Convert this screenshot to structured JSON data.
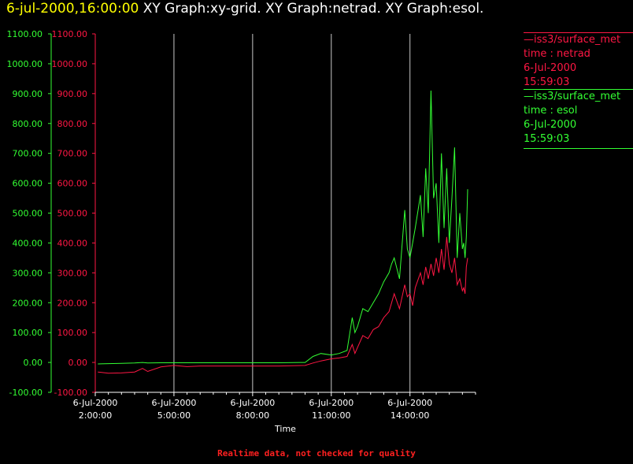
{
  "header": {
    "timestamp": "6-jul-2000,16:00:00",
    "graphs": "XY Graph:xy-grid.  XY Graph:netrad.  XY Graph:esol."
  },
  "colors": {
    "netrad": "#ff1744",
    "esol": "#33ff33",
    "timestamp": "#ffff00",
    "grid": "#c8c8c8",
    "footer": "#ff2020"
  },
  "legend": [
    {
      "line1": "iss3/surface_met",
      "line2": "time : netrad",
      "line3": "6-Jul-2000",
      "line4": "15:59:03",
      "color": "#ff1744"
    },
    {
      "line1": "iss3/surface_met",
      "line2": "time : esol",
      "line3": "6-Jul-2000",
      "line4": "15:59:03",
      "color": "#33ff33"
    }
  ],
  "footer": "Realtime data, not checked for quality",
  "chart_data": {
    "type": "line",
    "xlabel": "Time",
    "xticks": [
      {
        "date": "6-Jul-2000",
        "time": "2:00:00",
        "hour": 2
      },
      {
        "date": "6-Jul-2000",
        "time": "5:00:00",
        "hour": 5
      },
      {
        "date": "6-Jul-2000",
        "time": "8:00:00",
        "hour": 8
      },
      {
        "date": "6-Jul-2000",
        "time": "11:00:00",
        "hour": 11
      },
      {
        "date": "6-Jul-2000",
        "time": "14:00:00",
        "hour": 14
      }
    ],
    "xlim": [
      2,
      16.5
    ],
    "ylim": [
      -100,
      1100
    ],
    "yticks": [
      "-100.00",
      "0.00",
      "100.00",
      "200.00",
      "300.00",
      "400.00",
      "500.00",
      "600.00",
      "700.00",
      "800.00",
      "900.00",
      "1000.00",
      "1100.00"
    ],
    "grid": "vertical",
    "series": [
      {
        "name": "netrad",
        "x": [
          2.1,
          2.5,
          3.0,
          3.5,
          3.8,
          4.0,
          4.5,
          5.0,
          5.5,
          6.0,
          7.0,
          8.0,
          9.0,
          10.0,
          10.3,
          10.6,
          11.0,
          11.3,
          11.6,
          11.8,
          11.9,
          12.0,
          12.2,
          12.4,
          12.6,
          12.8,
          13.0,
          13.2,
          13.3,
          13.4,
          13.6,
          13.8,
          13.9,
          14.0,
          14.1,
          14.2,
          14.4,
          14.5,
          14.6,
          14.7,
          14.8,
          14.9,
          15.0,
          15.1,
          15.2,
          15.3,
          15.4,
          15.5,
          15.6,
          15.7,
          15.8,
          15.9,
          16.0,
          16.05,
          16.1,
          16.15,
          16.2
        ],
        "y": [
          -32,
          -36,
          -35,
          -32,
          -20,
          -30,
          -15,
          -10,
          -14,
          -12,
          -12,
          -12,
          -12,
          -10,
          -2,
          5,
          12,
          15,
          20,
          60,
          30,
          50,
          90,
          80,
          110,
          120,
          150,
          170,
          200,
          230,
          180,
          260,
          220,
          230,
          190,
          250,
          300,
          260,
          320,
          280,
          330,
          290,
          350,
          300,
          380,
          310,
          420,
          330,
          300,
          350,
          260,
          280,
          240,
          250,
          230,
          320,
          350
        ]
      },
      {
        "name": "esol",
        "x": [
          2.1,
          2.5,
          3.0,
          3.5,
          3.8,
          4.0,
          4.5,
          5.0,
          5.5,
          6.0,
          7.0,
          8.0,
          9.0,
          10.0,
          10.3,
          10.6,
          11.0,
          11.3,
          11.6,
          11.8,
          11.9,
          12.0,
          12.2,
          12.4,
          12.6,
          12.8,
          13.0,
          13.2,
          13.3,
          13.4,
          13.6,
          13.8,
          13.9,
          14.0,
          14.1,
          14.2,
          14.4,
          14.5,
          14.6,
          14.7,
          14.8,
          14.9,
          15.0,
          15.1,
          15.2,
          15.3,
          15.4,
          15.5,
          15.6,
          15.7,
          15.8,
          15.9,
          16.0,
          16.05,
          16.1,
          16.15,
          16.2
        ],
        "y": [
          -5,
          -4,
          -3,
          -2,
          0,
          -2,
          -1,
          -1,
          -1,
          -1,
          -1,
          -1,
          -1,
          0,
          20,
          30,
          25,
          30,
          40,
          150,
          100,
          120,
          180,
          170,
          200,
          230,
          270,
          300,
          330,
          350,
          280,
          510,
          380,
          350,
          400,
          450,
          560,
          420,
          650,
          500,
          910,
          550,
          600,
          400,
          700,
          450,
          650,
          400,
          550,
          720,
          350,
          500,
          380,
          400,
          350,
          420,
          580
        ]
      }
    ]
  }
}
